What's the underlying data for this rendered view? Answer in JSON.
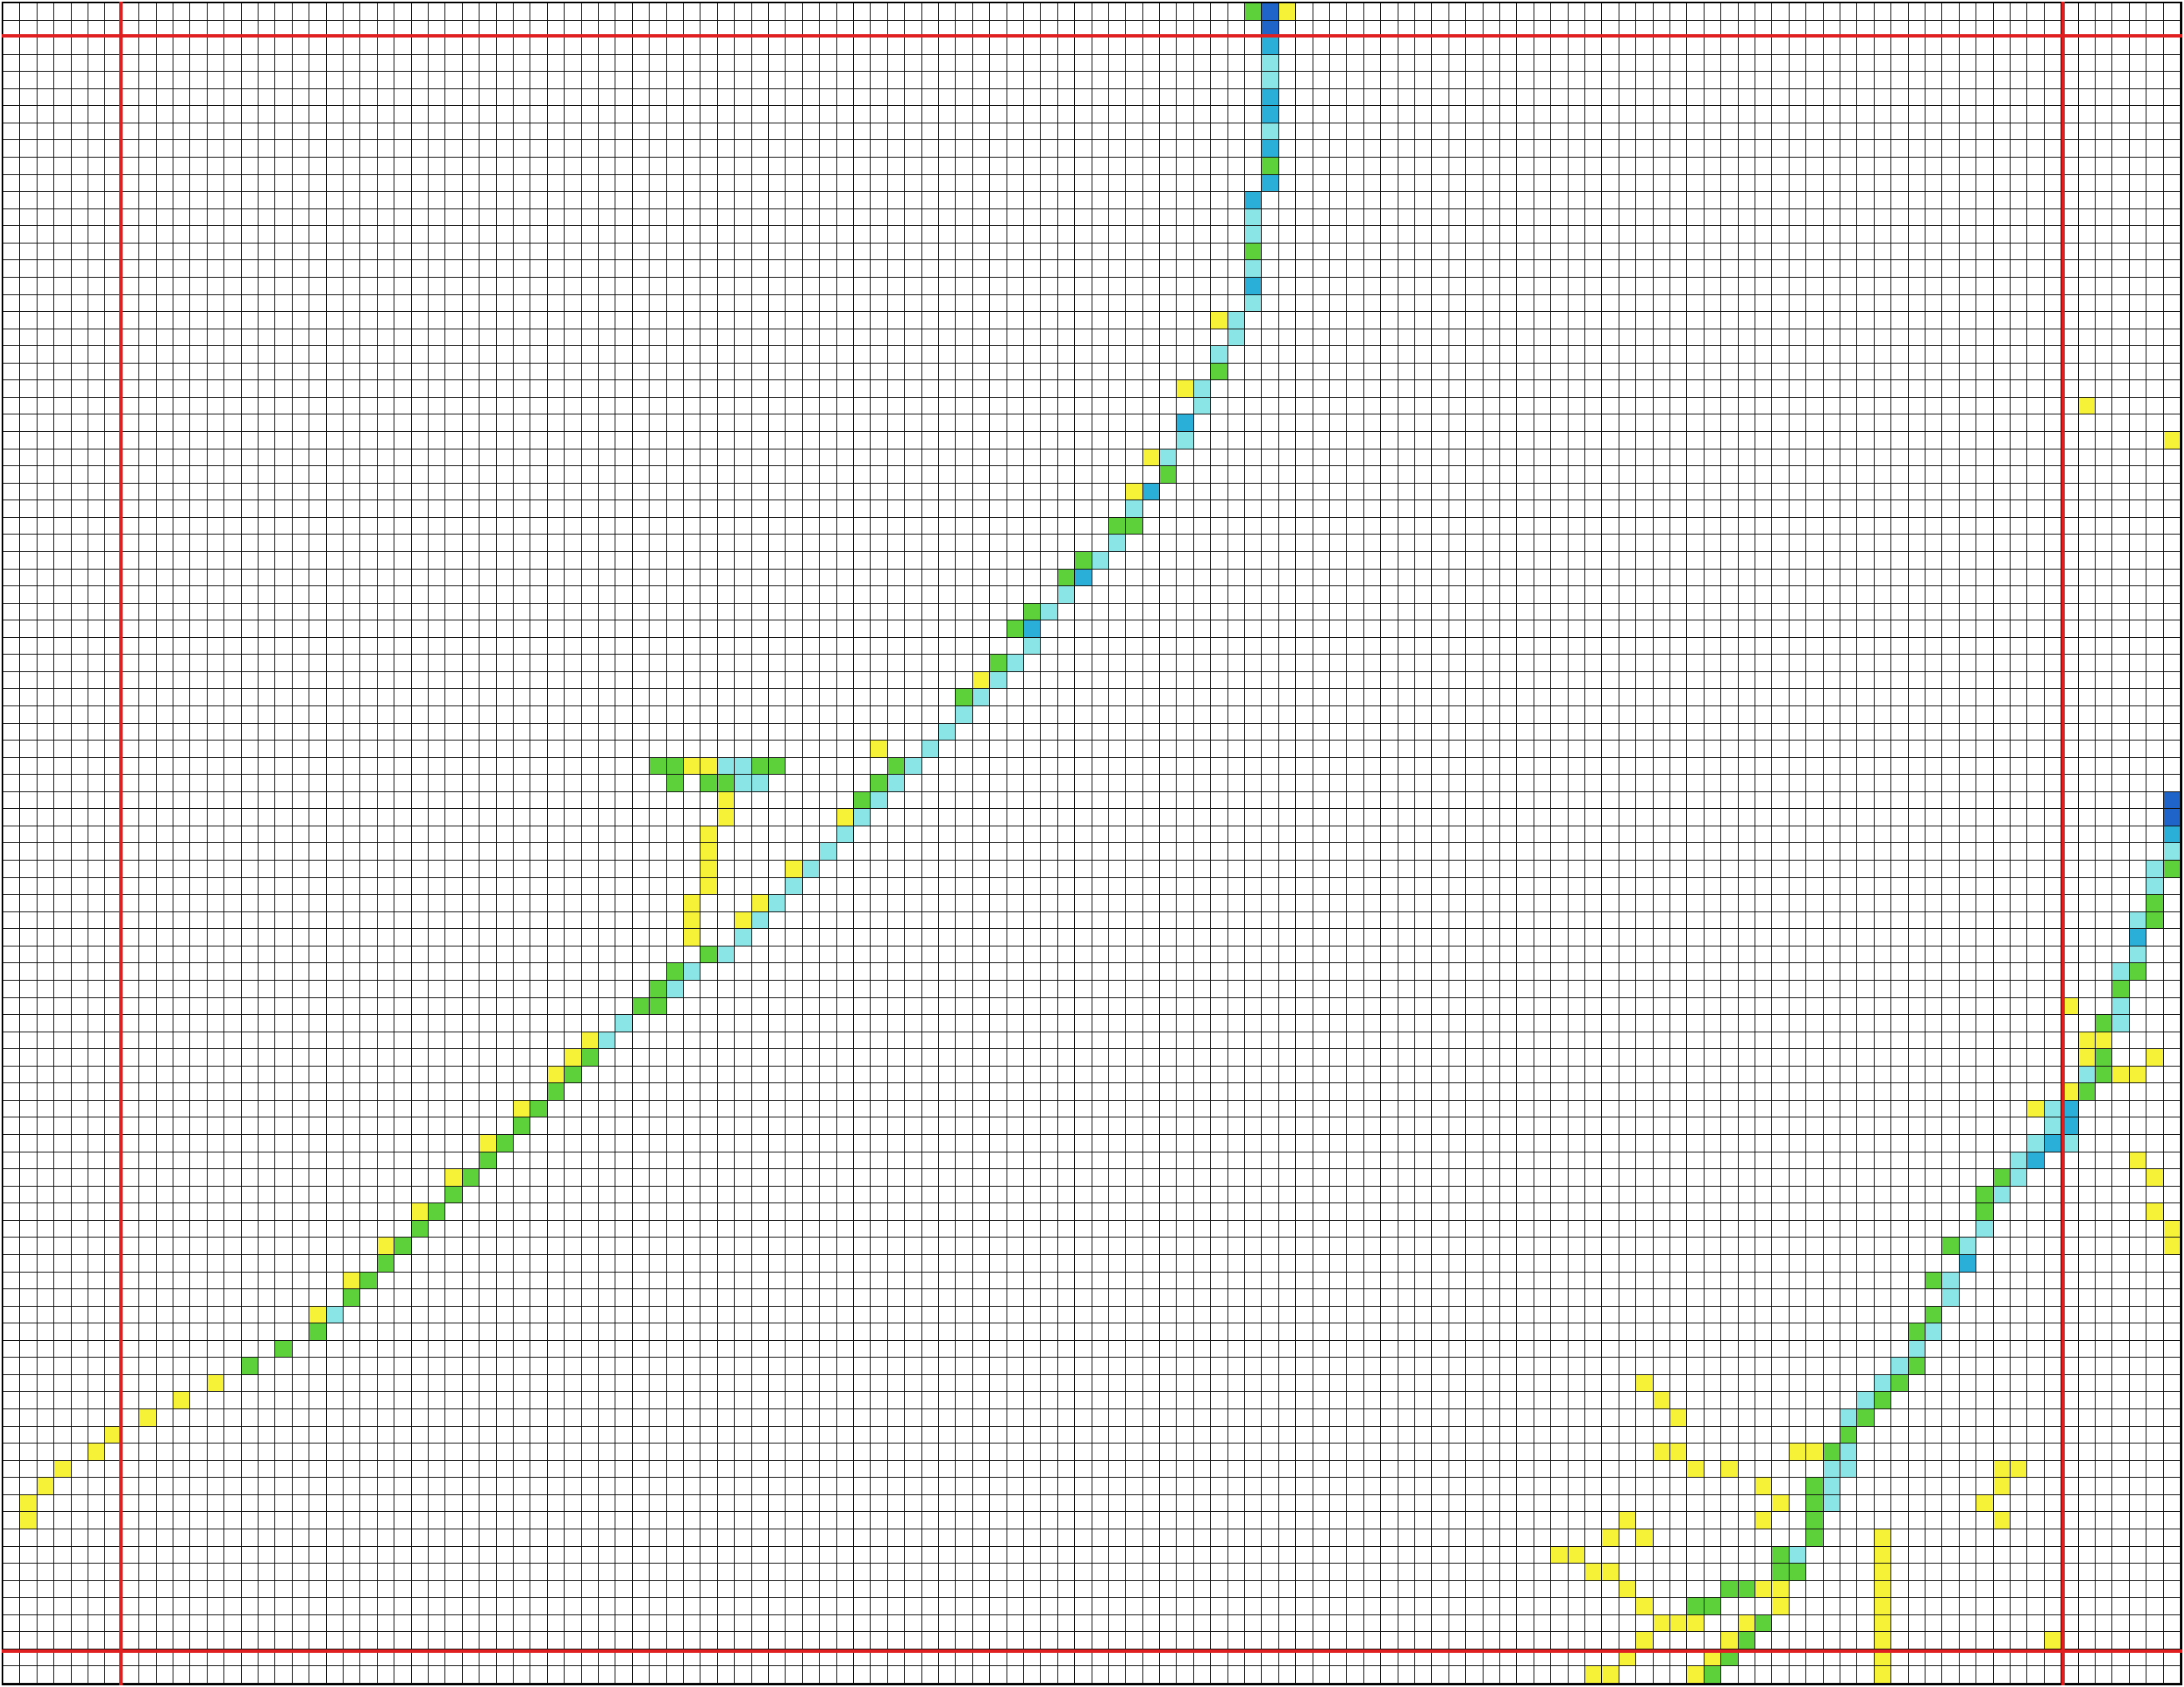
{
  "grid": {
    "rows": 98,
    "cols": 128,
    "cell_text": "",
    "levels": [
      "none",
      "yellow",
      "green",
      "cyan",
      "blue",
      "dark-blue"
    ],
    "level_colors": {
      "yellow": "#f5f238",
      "green": "#5cd13a",
      "cyan": "#8ae6e6",
      "blue": "#2ab0d8",
      "dark-blue": "#1f64c8"
    },
    "divider_color": "#e02020",
    "divider_rows": [
      2,
      96
    ],
    "divider_cols": [
      7,
      121
    ],
    "path_a": [
      [
        0,
        74,
        5
      ],
      [
        1,
        74,
        5
      ],
      [
        2,
        74,
        4
      ],
      [
        3,
        74,
        3
      ],
      [
        4,
        74,
        3
      ],
      [
        5,
        74,
        4
      ],
      [
        6,
        74,
        4
      ],
      [
        7,
        74,
        3
      ],
      [
        8,
        74,
        4
      ],
      [
        9,
        74,
        2
      ],
      [
        10,
        74,
        4
      ],
      [
        11,
        73,
        4
      ],
      [
        12,
        73,
        3
      ],
      [
        13,
        73,
        3
      ],
      [
        14,
        73,
        2
      ],
      [
        15,
        73,
        3
      ],
      [
        16,
        73,
        4
      ],
      [
        17,
        73,
        3
      ],
      [
        18,
        72,
        3
      ],
      [
        19,
        72,
        3
      ],
      [
        20,
        71,
        3
      ],
      [
        21,
        71,
        2
      ],
      [
        22,
        70,
        3
      ],
      [
        23,
        70,
        3
      ],
      [
        24,
        69,
        4
      ],
      [
        25,
        69,
        3
      ],
      [
        26,
        68,
        3
      ],
      [
        27,
        68,
        2
      ],
      [
        28,
        67,
        4
      ],
      [
        29,
        66,
        3
      ],
      [
        30,
        66,
        2
      ],
      [
        31,
        65,
        3
      ],
      [
        32,
        64,
        3
      ],
      [
        33,
        63,
        4
      ],
      [
        34,
        62,
        3
      ],
      [
        35,
        61,
        3
      ],
      [
        36,
        60,
        4
      ],
      [
        37,
        60,
        3
      ],
      [
        38,
        59,
        3
      ],
      [
        39,
        58,
        3
      ],
      [
        40,
        57,
        3
      ],
      [
        41,
        56,
        3
      ],
      [
        42,
        55,
        3
      ],
      [
        43,
        54,
        3
      ],
      [
        44,
        53,
        3
      ],
      [
        45,
        52,
        3
      ],
      [
        46,
        51,
        3
      ],
      [
        47,
        50,
        3
      ],
      [
        48,
        49,
        3
      ],
      [
        49,
        48,
        3
      ],
      [
        50,
        47,
        3
      ],
      [
        51,
        46,
        3
      ],
      [
        52,
        45,
        3
      ],
      [
        53,
        44,
        3
      ],
      [
        54,
        43,
        3
      ],
      [
        55,
        42,
        3
      ],
      [
        56,
        40,
        3
      ],
      [
        57,
        39,
        3
      ],
      [
        58,
        38,
        2
      ],
      [
        59,
        36,
        3
      ],
      [
        60,
        35,
        3
      ],
      [
        61,
        34,
        2
      ],
      [
        62,
        33,
        2
      ],
      [
        63,
        32,
        2
      ],
      [
        64,
        31,
        2
      ],
      [
        65,
        30,
        2
      ],
      [
        66,
        29,
        2
      ],
      [
        67,
        28,
        2
      ],
      [
        68,
        27,
        2
      ],
      [
        69,
        26,
        2
      ],
      [
        70,
        25,
        2
      ],
      [
        71,
        24,
        2
      ],
      [
        72,
        23,
        2
      ],
      [
        73,
        22,
        2
      ],
      [
        74,
        21,
        2
      ],
      [
        75,
        20,
        2
      ],
      [
        76,
        19,
        3
      ],
      [
        77,
        18,
        2
      ],
      [
        78,
        16,
        2
      ],
      [
        79,
        14,
        2
      ],
      [
        80,
        12,
        1
      ],
      [
        81,
        10,
        1
      ],
      [
        82,
        8,
        1
      ],
      [
        83,
        6,
        1
      ],
      [
        84,
        5,
        1
      ],
      [
        85,
        3,
        1
      ],
      [
        86,
        2,
        1
      ],
      [
        87,
        1,
        1
      ],
      [
        88,
        1,
        1
      ]
    ],
    "path_a_extra": [
      [
        0,
        73,
        2
      ],
      [
        0,
        75,
        1
      ],
      [
        18,
        71,
        1
      ],
      [
        22,
        69,
        1
      ],
      [
        26,
        67,
        1
      ],
      [
        28,
        66,
        1
      ],
      [
        30,
        65,
        2
      ],
      [
        32,
        63,
        2
      ],
      [
        33,
        62,
        2
      ],
      [
        35,
        60,
        2
      ],
      [
        36,
        59,
        2
      ],
      [
        44,
        52,
        2
      ],
      [
        45,
        51,
        2
      ],
      [
        47,
        49,
        1
      ],
      [
        50,
        46,
        1
      ],
      [
        52,
        44,
        1
      ],
      [
        53,
        43,
        1
      ],
      [
        55,
        41,
        2
      ],
      [
        56,
        39,
        2
      ],
      [
        57,
        38,
        2
      ],
      [
        58,
        37,
        2
      ],
      [
        60,
        34,
        1
      ],
      [
        61,
        33,
        1
      ],
      [
        46,
        50,
        2
      ],
      [
        43,
        51,
        1
      ],
      [
        40,
        56,
        2
      ],
      [
        38,
        58,
        2
      ],
      [
        39,
        57,
        1
      ],
      [
        62,
        32,
        1
      ],
      [
        64,
        30,
        1
      ],
      [
        66,
        28,
        1
      ],
      [
        68,
        26,
        1
      ],
      [
        70,
        24,
        1
      ],
      [
        72,
        22,
        1
      ],
      [
        74,
        20,
        1
      ],
      [
        76,
        18,
        1
      ]
    ],
    "path_a_branch": [
      [
        44,
        38,
        2
      ],
      [
        44,
        39,
        2
      ],
      [
        45,
        39,
        2
      ],
      [
        44,
        40,
        1
      ],
      [
        44,
        41,
        1
      ],
      [
        45,
        41,
        2
      ],
      [
        44,
        42,
        3
      ],
      [
        44,
        43,
        3
      ],
      [
        45,
        44,
        3
      ],
      [
        45,
        43,
        3
      ],
      [
        44,
        44,
        2
      ],
      [
        44,
        45,
        2
      ],
      [
        45,
        42,
        2
      ],
      [
        46,
        42,
        1
      ],
      [
        47,
        42,
        1
      ],
      [
        48,
        41,
        1
      ],
      [
        49,
        41,
        1
      ],
      [
        50,
        41,
        1
      ],
      [
        51,
        41,
        1
      ],
      [
        52,
        40,
        1
      ],
      [
        53,
        40,
        1
      ],
      [
        54,
        40,
        1
      ]
    ],
    "path_b": [
      [
        46,
        127,
        5
      ],
      [
        47,
        127,
        5
      ],
      [
        48,
        127,
        4
      ],
      [
        49,
        127,
        3
      ],
      [
        50,
        126,
        3
      ],
      [
        51,
        126,
        3
      ],
      [
        52,
        126,
        2
      ],
      [
        53,
        125,
        3
      ],
      [
        54,
        125,
        4
      ],
      [
        55,
        125,
        3
      ],
      [
        56,
        124,
        3
      ],
      [
        57,
        124,
        2
      ],
      [
        58,
        124,
        3
      ],
      [
        59,
        123,
        2
      ],
      [
        60,
        123,
        1
      ],
      [
        61,
        123,
        2
      ],
      [
        62,
        122,
        3
      ],
      [
        63,
        122,
        2
      ],
      [
        64,
        121,
        4
      ],
      [
        65,
        121,
        4
      ],
      [
        66,
        120,
        4
      ],
      [
        67,
        119,
        4
      ],
      [
        68,
        118,
        3
      ],
      [
        69,
        117,
        3
      ],
      [
        70,
        116,
        2
      ],
      [
        71,
        116,
        3
      ],
      [
        72,
        115,
        3
      ],
      [
        73,
        115,
        4
      ],
      [
        74,
        114,
        3
      ],
      [
        75,
        114,
        3
      ],
      [
        76,
        113,
        2
      ],
      [
        77,
        113,
        3
      ],
      [
        78,
        112,
        3
      ],
      [
        79,
        111,
        3
      ],
      [
        80,
        110,
        3
      ],
      [
        81,
        109,
        3
      ],
      [
        82,
        108,
        3
      ],
      [
        83,
        108,
        2
      ],
      [
        84,
        107,
        2
      ],
      [
        85,
        107,
        3
      ],
      [
        86,
        106,
        2
      ],
      [
        87,
        106,
        2
      ],
      [
        88,
        106,
        2
      ],
      [
        89,
        106,
        2
      ],
      [
        90,
        105,
        3
      ],
      [
        91,
        105,
        2
      ],
      [
        92,
        104,
        1
      ],
      [
        93,
        104,
        1
      ],
      [
        94,
        103,
        2
      ],
      [
        95,
        102,
        2
      ],
      [
        96,
        101,
        2
      ],
      [
        97,
        100,
        2
      ]
    ],
    "path_b_extra": [
      [
        50,
        127,
        2
      ],
      [
        53,
        126,
        2
      ],
      [
        56,
        125,
        2
      ],
      [
        59,
        124,
        3
      ],
      [
        62,
        123,
        2
      ],
      [
        64,
        120,
        3
      ],
      [
        65,
        120,
        3
      ],
      [
        66,
        119,
        3
      ],
      [
        66,
        121,
        3
      ],
      [
        67,
        118,
        3
      ],
      [
        68,
        117,
        2
      ],
      [
        69,
        116,
        2
      ],
      [
        72,
        114,
        2
      ],
      [
        74,
        113,
        2
      ],
      [
        77,
        112,
        2
      ],
      [
        79,
        112,
        2
      ],
      [
        80,
        111,
        2
      ],
      [
        81,
        110,
        2
      ],
      [
        82,
        109,
        2
      ],
      [
        84,
        108,
        3
      ],
      [
        85,
        108,
        3
      ],
      [
        86,
        107,
        3
      ],
      [
        87,
        107,
        3
      ],
      [
        90,
        104,
        2
      ],
      [
        91,
        104,
        2
      ],
      [
        92,
        103,
        1
      ],
      [
        94,
        102,
        1
      ],
      [
        95,
        101,
        1
      ],
      [
        96,
        100,
        1
      ],
      [
        97,
        99,
        1
      ],
      [
        92,
        110,
        1
      ],
      [
        93,
        110,
        1
      ],
      [
        94,
        110,
        1
      ],
      [
        95,
        110,
        1
      ],
      [
        96,
        110,
        1
      ],
      [
        97,
        110,
        1
      ],
      [
        91,
        110,
        1
      ],
      [
        90,
        110,
        1
      ],
      [
        89,
        110,
        1
      ],
      [
        92,
        102,
        2
      ],
      [
        92,
        101,
        2
      ],
      [
        93,
        100,
        2
      ],
      [
        93,
        99,
        2
      ],
      [
        94,
        98,
        1
      ],
      [
        95,
        96,
        1
      ],
      [
        96,
        95,
        1
      ],
      [
        97,
        94,
        1
      ],
      [
        97,
        93,
        1
      ],
      [
        94,
        99,
        1
      ],
      [
        61,
        126,
        1
      ],
      [
        67,
        125,
        1
      ],
      [
        68,
        126,
        1
      ],
      [
        62,
        125,
        1
      ],
      [
        61,
        122,
        1
      ],
      [
        63,
        121,
        1
      ],
      [
        64,
        119,
        1
      ],
      [
        60,
        122,
        1
      ]
    ],
    "scatter": [
      [
        23,
        122,
        1
      ],
      [
        25,
        127,
        1
      ],
      [
        87,
        104,
        1
      ],
      [
        88,
        103,
        1
      ],
      [
        84,
        97,
        1
      ],
      [
        84,
        98,
        1
      ],
      [
        85,
        99,
        1
      ],
      [
        84,
        105,
        1
      ],
      [
        84,
        106,
        1
      ],
      [
        85,
        117,
        1
      ],
      [
        81,
        97,
        1
      ],
      [
        82,
        98,
        1
      ],
      [
        80,
        96,
        1
      ],
      [
        85,
        101,
        1
      ],
      [
        86,
        103,
        1
      ],
      [
        88,
        95,
        1
      ],
      [
        89,
        96,
        1
      ],
      [
        89,
        94,
        1
      ],
      [
        90,
        91,
        1
      ],
      [
        90,
        92,
        1
      ],
      [
        91,
        93,
        1
      ],
      [
        91,
        94,
        1
      ],
      [
        92,
        95,
        1
      ],
      [
        93,
        96,
        1
      ],
      [
        94,
        97,
        1
      ],
      [
        86,
        117,
        1
      ],
      [
        87,
        116,
        1
      ],
      [
        88,
        117,
        1
      ],
      [
        85,
        118,
        1
      ],
      [
        70,
        126,
        1
      ],
      [
        71,
        127,
        1
      ],
      [
        95,
        120,
        1
      ],
      [
        72,
        127,
        1
      ],
      [
        62,
        124,
        1
      ],
      [
        58,
        121,
        1
      ]
    ]
  }
}
